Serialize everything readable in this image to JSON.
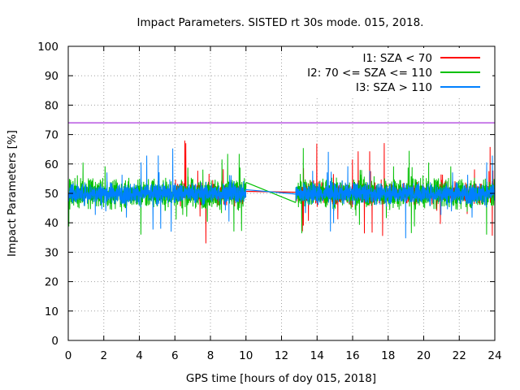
{
  "chart_data": {
    "type": "line",
    "title": "Impact Parameters. SISTED rt 30s mode. 015, 2018.",
    "xlabel": "GPS time [hours of doy 015, 2018]",
    "ylabel": "Impact Parameters [%]",
    "xlim": [
      0,
      24
    ],
    "ylim": [
      0,
      100
    ],
    "x_ticks": [
      0,
      2,
      4,
      6,
      8,
      10,
      12,
      14,
      16,
      18,
      20,
      22,
      24
    ],
    "y_ticks": [
      0,
      10,
      20,
      30,
      40,
      50,
      60,
      70,
      80,
      90,
      100
    ],
    "grid": true,
    "legend_position": "top-right",
    "data_gap_hours": [
      10.0,
      12.8
    ],
    "reference_line": {
      "y": 74,
      "color": "#9400d3"
    },
    "series": [
      {
        "name": "I1: SZA < 70",
        "color": "#ff0000",
        "segments": [
          [
            6.0,
            10.0
          ],
          [
            12.8,
            24.0
          ]
        ],
        "mean": 50,
        "typical_range": [
          45,
          55
        ],
        "extremes": {
          "min": 32,
          "max": 68
        }
      },
      {
        "name": "I2: 70 <= SZA <= 110",
        "color": "#00c000",
        "segments": [
          [
            0.0,
            10.0
          ],
          [
            12.8,
            24.0
          ]
        ],
        "mean": 50,
        "typical_range": [
          43,
          57
        ],
        "extremes": {
          "min": 36,
          "max": 66
        }
      },
      {
        "name": "I3: SZA > 110",
        "color": "#0080ff",
        "segments": [
          [
            0.0,
            10.0
          ],
          [
            12.8,
            24.0
          ]
        ],
        "mean": 50,
        "typical_range": [
          45,
          55
        ],
        "extremes": {
          "min": 34,
          "max": 66
        }
      }
    ]
  }
}
